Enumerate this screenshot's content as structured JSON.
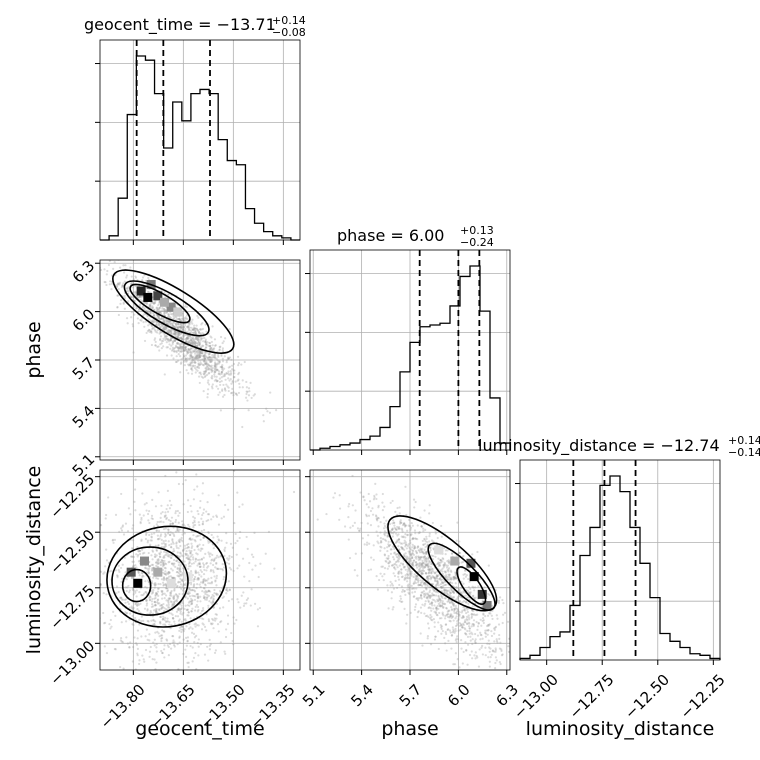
{
  "chart_data": {
    "type": "corner",
    "parameters": [
      {
        "name": "geocent_time",
        "label": "geocent_time",
        "median": "−13.71",
        "plus": "+0.14",
        "minus": "−0.08",
        "quantiles": [
          -13.79,
          -13.71,
          -13.57
        ],
        "axis_range": [
          -13.9,
          -13.3
        ],
        "ticks": [
          -13.8,
          -13.65,
          -13.5,
          -13.35
        ],
        "tick_labels": [
          "−13.80",
          "−13.65",
          "−13.50",
          "−13.35"
        ],
        "hist_counts": [
          0,
          2,
          20,
          60,
          88,
          86,
          70,
          44,
          66,
          57,
          70,
          72,
          70,
          48,
          38,
          36,
          15,
          8,
          4,
          2,
          1,
          0
        ]
      },
      {
        "name": "phase",
        "label": "phase",
        "median": "6.00",
        "plus": "+0.13",
        "minus": "−0.24",
        "quantiles": [
          5.76,
          6.0,
          6.13
        ],
        "axis_range": [
          5.08,
          6.32
        ],
        "ticks": [
          5.1,
          5.4,
          5.7,
          6.0,
          6.3
        ],
        "tick_labels": [
          "5.1",
          "5.4",
          "5.7",
          "6.0",
          "6.3"
        ],
        "hist_counts": [
          0,
          1,
          2,
          3,
          4,
          6,
          8,
          13,
          25,
          45,
          62,
          71,
          72,
          73,
          83,
          100,
          106,
          80,
          30,
          4
        ]
      },
      {
        "name": "luminosity_distance",
        "label": "luminosity_distance",
        "median": "−12.74",
        "plus": "+0.14",
        "minus": "−0.14",
        "quantiles": [
          -12.88,
          -12.74,
          -12.6
        ],
        "axis_range": [
          -13.12,
          -12.22
        ],
        "ticks": [
          -13.0,
          -12.75,
          -12.5,
          -12.25
        ],
        "tick_labels": [
          "−13.00",
          "−12.75",
          "−12.50",
          "−12.25"
        ],
        "hist_counts": [
          1,
          3,
          8,
          15,
          18,
          35,
          67,
          85,
          112,
          118,
          108,
          85,
          62,
          40,
          17,
          12,
          8,
          4,
          3,
          1
        ]
      }
    ],
    "pair_panels": [
      {
        "x": "geocent_time",
        "y": "phase",
        "correlation": "negative"
      },
      {
        "x": "geocent_time",
        "y": "luminosity_distance",
        "correlation": "none"
      },
      {
        "x": "phase",
        "y": "luminosity_distance",
        "correlation": "negative"
      }
    ],
    "grid": true,
    "tick_labels_rotated": true
  }
}
